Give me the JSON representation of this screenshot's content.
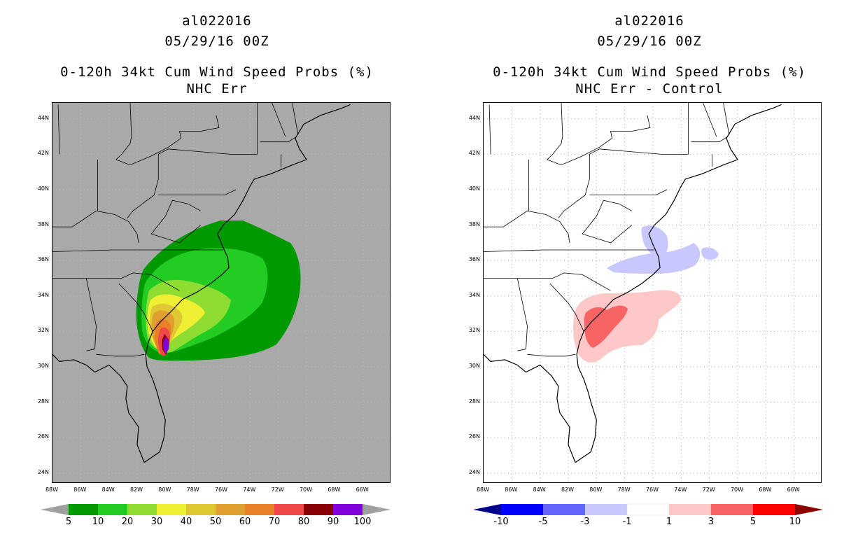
{
  "left": {
    "storm_id": "al022016",
    "date": "05/29/16 00Z",
    "product": "0-120h 34kt Cum Wind Speed Probs (%)",
    "subtitle": "NHC Err",
    "background": "#a9a9a9",
    "colorbar": {
      "labels": [
        "5",
        "10",
        "20",
        "30",
        "40",
        "50",
        "60",
        "70",
        "80",
        "90",
        "100"
      ],
      "colors": [
        "#009a00",
        "#22cc22",
        "#8fdd32",
        "#f0f032",
        "#e0c834",
        "#e0a030",
        "#e88028",
        "#f04848",
        "#8a0000",
        "#8200dc"
      ],
      "end_colors": [
        "#a0a0a0",
        "#a0a0a0"
      ]
    }
  },
  "right": {
    "storm_id": "al022016",
    "date": "05/29/16 00Z",
    "product": "0-120h 34kt Cum Wind Speed Probs (%)",
    "subtitle": "NHC Err - Control",
    "background": "#ffffff",
    "colorbar": {
      "labels": [
        "-10",
        "-5",
        "-3",
        "-1",
        "1",
        "3",
        "5",
        "10"
      ],
      "colors": [
        "#0000ff",
        "#6464ff",
        "#c8c8ff",
        "#ffffff",
        "#ffc8c8",
        "#f86464",
        "#ff0000"
      ],
      "end_colors": [
        "#00008c",
        "#8c0000"
      ]
    }
  },
  "axes": {
    "lat_labels": [
      "44N",
      "42N",
      "40N",
      "38N",
      "36N",
      "34N",
      "32N",
      "30N",
      "28N",
      "26N",
      "24N"
    ],
    "lon_labels": [
      "88W",
      "86W",
      "84W",
      "82W",
      "80W",
      "78W",
      "76W",
      "74W",
      "72W",
      "70W",
      "68W",
      "66W"
    ]
  }
}
